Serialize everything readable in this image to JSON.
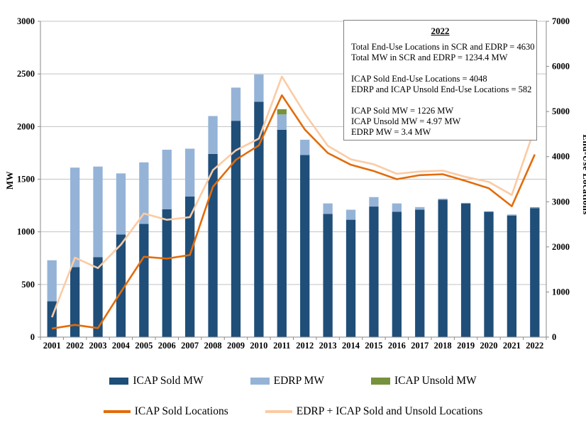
{
  "chart_data": {
    "type": "combo-bar-line",
    "title": "",
    "categories": [
      "2001",
      "2002",
      "2003",
      "2004",
      "2005",
      "2006",
      "2007",
      "2008",
      "2009",
      "2010",
      "2011",
      "2012",
      "2013",
      "2014",
      "2015",
      "2016",
      "2017",
      "2018",
      "2019",
      "2020",
      "2021",
      "2022"
    ],
    "bar_series": [
      {
        "name": "ICAP Sold MW",
        "axis": "left",
        "color": "#1F4E79",
        "values": [
          340,
          665,
          760,
          975,
          1075,
          1215,
          1335,
          1740,
          2055,
          2235,
          1970,
          1730,
          1170,
          1115,
          1240,
          1190,
          1210,
          1305,
          1270,
          1190,
          1155,
          1226
        ]
      },
      {
        "name": "EDRP MW",
        "axis": "left",
        "color": "#95B3D7",
        "values": [
          390,
          945,
          860,
          580,
          585,
          565,
          455,
          360,
          315,
          260,
          145,
          145,
          100,
          95,
          90,
          80,
          25,
          10,
          5,
          5,
          10,
          3.4
        ]
      },
      {
        "name": "ICAP Unsold MW",
        "axis": "left",
        "color": "#76923C",
        "values": [
          0,
          0,
          0,
          0,
          0,
          0,
          0,
          0,
          0,
          0,
          50,
          0,
          0,
          0,
          0,
          0,
          0,
          0,
          0,
          0,
          0,
          4.97
        ]
      }
    ],
    "line_series": [
      {
        "name": "ICAP Sold Locations",
        "axis": "right",
        "color": "#E36C0A",
        "values": [
          190,
          270,
          200,
          1000,
          1780,
          1740,
          1820,
          3330,
          3930,
          4250,
          5360,
          4600,
          4080,
          3820,
          3680,
          3500,
          3590,
          3610,
          3460,
          3300,
          2900,
          4048
        ]
      },
      {
        "name": "EDRP + ICAP Sold and Unsold Locations",
        "axis": "right",
        "color": "#FBCBA4",
        "values": [
          440,
          1760,
          1530,
          2050,
          2740,
          2600,
          2660,
          3700,
          4140,
          4400,
          5775,
          4950,
          4240,
          3940,
          3830,
          3620,
          3670,
          3690,
          3550,
          3440,
          3150,
          4630
        ]
      }
    ],
    "left_axis": {
      "label": "MW",
      "min": 0,
      "max": 3000,
      "step": 500
    },
    "right_axis": {
      "label": "End-Use Locations",
      "min": 0,
      "max": 7000,
      "step": 1000
    },
    "grid": true,
    "legend_position": "bottom",
    "gridline_color": "#C3C3C3",
    "axis_line_color": "#898989"
  },
  "annotation": {
    "title": "2022",
    "lines": [
      "Total End-Use Locations in SCR and EDRP = 4630",
      "Total MW in SCR and EDRP =  1234.4 MW",
      "",
      "ICAP Sold End-Use Locations = 4048",
      "EDRP and ICAP Unsold End-Use Locations = 582",
      "",
      "ICAP Sold MW = 1226 MW",
      "ICAP Unsold MW = 4.97 MW",
      "EDRP MW = 3.4 MW"
    ]
  }
}
